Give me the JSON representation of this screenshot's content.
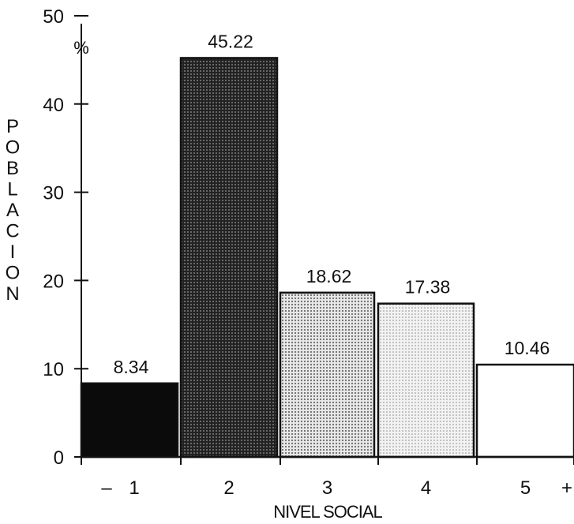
{
  "chart_data": {
    "type": "bar",
    "categories": [
      "1",
      "2",
      "3",
      "4",
      "5"
    ],
    "values": [
      8.34,
      45.22,
      18.62,
      17.38,
      10.46
    ],
    "value_labels": [
      "8.34",
      "45.22",
      "18.62",
      "17.38",
      "10.46"
    ],
    "xlabel": "NIVEL SOCIAL",
    "ylabel": "POBLACION",
    "y_unit": "%",
    "x_min_marker": "–",
    "x_max_marker": "+",
    "ylim": [
      0,
      50
    ],
    "yticks": [
      0,
      10,
      20,
      30,
      40,
      50
    ],
    "grid": false,
    "bar_fills": [
      "#0a0a0a",
      "#3a3a3a",
      "#b9b9b9",
      "#dedede",
      "#ffffff"
    ]
  }
}
